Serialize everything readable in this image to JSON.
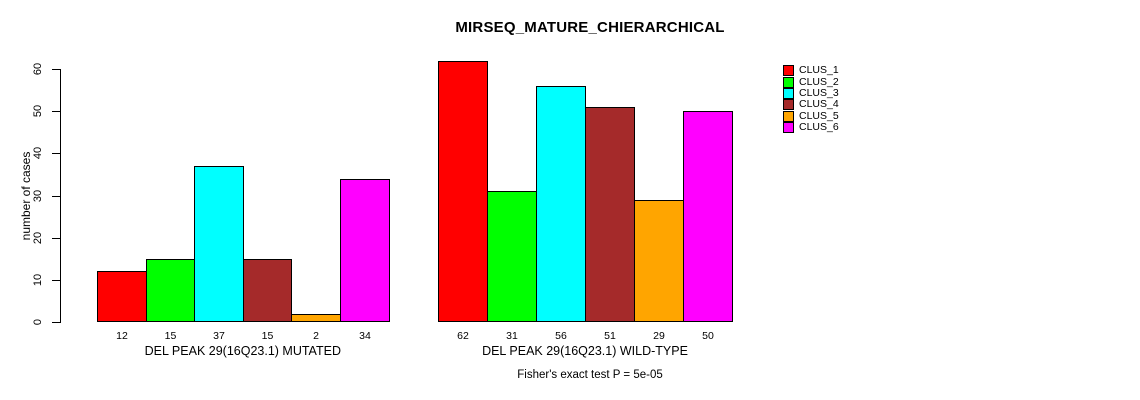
{
  "figure": {
    "title": "MIRSEQ_MATURE_CHIERARCHICAL",
    "ylabel": "number of cases",
    "footer": "Fisher's exact test P = 5e-05"
  },
  "chart_data": {
    "type": "bar",
    "title": "MIRSEQ_MATURE_CHIERARCHICAL",
    "xlabel": "",
    "ylabel": "number of cases",
    "ylim": [
      0,
      60
    ],
    "yticks": [
      0,
      10,
      20,
      30,
      40,
      50,
      60
    ],
    "grid": false,
    "bar_value_labels": true,
    "legend_position": "right-outside-top",
    "groups": [
      {
        "label": "DEL PEAK 29(16Q23.1) MUTATED",
        "values": [
          12,
          15,
          37,
          15,
          2,
          34
        ]
      },
      {
        "label": "DEL PEAK 29(16Q23.1) WILD-TYPE",
        "values": [
          62,
          31,
          56,
          51,
          29,
          50
        ]
      }
    ],
    "series": [
      {
        "name": "CLUS_1",
        "color": "#FF0000",
        "values": [
          12,
          62
        ]
      },
      {
        "name": "CLUS_2",
        "color": "#00FF00",
        "values": [
          15,
          31
        ]
      },
      {
        "name": "CLUS_3",
        "color": "#00FFFF",
        "values": [
          37,
          56
        ]
      },
      {
        "name": "CLUS_4",
        "color": "#A52A2A",
        "values": [
          15,
          51
        ]
      },
      {
        "name": "CLUS_5",
        "color": "#FFA500",
        "values": [
          2,
          29
        ]
      },
      {
        "name": "CLUS_6",
        "color": "#FF00FF",
        "values": [
          34,
          50
        ]
      }
    ],
    "annotation": "Fisher's exact test P = 5e-05"
  }
}
